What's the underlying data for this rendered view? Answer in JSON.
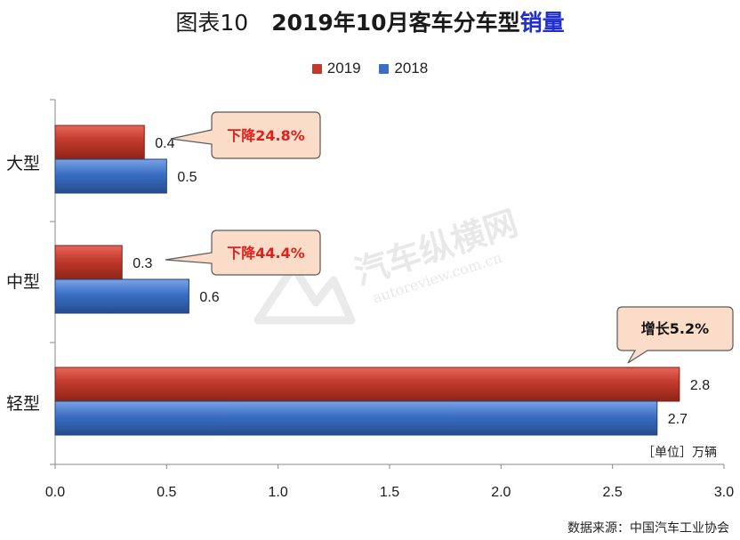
{
  "title": {
    "prefix": "图表10",
    "main": "2019年10月客车分车型",
    "highlight": "销量"
  },
  "legend": [
    {
      "name": "2019",
      "color": "#c0392b"
    },
    {
      "name": "2018",
      "color": "#3a6fc4"
    }
  ],
  "unit_label": "［单位］万辆",
  "source": "数据来源：中国汽车工业协会",
  "watermark": {
    "cn": "汽车纵横网",
    "en": "autoreview.com.cn"
  },
  "colors": {
    "series_2019": "#c0392b",
    "series_2018": "#3a6fc4",
    "callout_fill": "#fbdcc8",
    "callout_border": "#5a5a5a",
    "decline_text": "#e0201a",
    "growth_text": "#111111",
    "title_highlight": "#1f2fd0"
  },
  "chart_data": {
    "type": "bar",
    "orientation": "horizontal",
    "categories": [
      "大型",
      "中型",
      "轻型"
    ],
    "series": [
      {
        "name": "2019",
        "values": [
          0.4,
          0.3,
          2.8
        ],
        "labels": [
          "0.4",
          "0.3",
          "2.8"
        ]
      },
      {
        "name": "2018",
        "values": [
          0.5,
          0.6,
          2.7
        ],
        "labels": [
          "0.5",
          "0.6",
          "2.7"
        ]
      }
    ],
    "xlim": [
      0,
      3.0
    ],
    "ticks": [
      "0.0",
      "0.5",
      "1.0",
      "1.5",
      "2.0",
      "2.5",
      "3.0"
    ],
    "legend_position": "top-center",
    "grid": false,
    "annotations": [
      {
        "text": "下降24.8%",
        "category": "大型",
        "kind": "decline"
      },
      {
        "text": "下降44.4%",
        "category": "中型",
        "kind": "decline"
      },
      {
        "text": "增长5.2%",
        "category": "轻型",
        "kind": "growth"
      }
    ]
  }
}
